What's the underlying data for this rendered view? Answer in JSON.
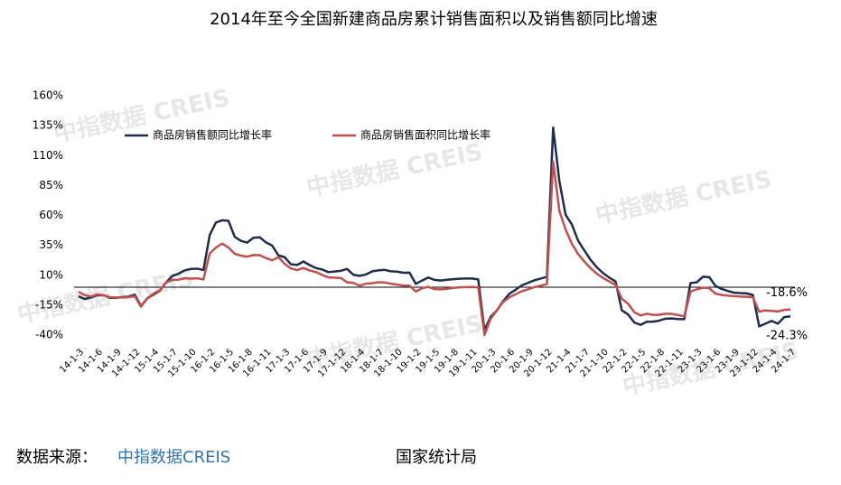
{
  "chart_data": {
    "type": "line",
    "title": "2014年至今全国新建商品房累计销售面积以及销售额同比增速",
    "watermark": "中指数据 CREIS",
    "source": {
      "label": "数据来源：",
      "items": [
        "中指数据CREIS",
        "国家统计局"
      ]
    },
    "legend": "upper left",
    "zero_line": true,
    "ylim": [
      -40,
      160
    ],
    "yticks": [
      {
        "value": -40,
        "label": "-40%"
      },
      {
        "value": -15,
        "label": "-15%"
      },
      {
        "value": 10,
        "label": "10%"
      },
      {
        "value": 35,
        "label": "35%"
      },
      {
        "value": 60,
        "label": "60%"
      },
      {
        "value": 85,
        "label": "85%"
      },
      {
        "value": 110,
        "label": "110%"
      },
      {
        "value": 135,
        "label": "135%"
      },
      {
        "value": 160,
        "label": "160%"
      }
    ],
    "categories": [
      "14-1-3",
      null,
      null,
      "14-1-6",
      null,
      null,
      "14-1-9",
      null,
      null,
      "14-1-12",
      null,
      null,
      "15-1-4",
      null,
      null,
      "15-1-7",
      null,
      null,
      "15-1-10",
      null,
      null,
      "16-1-2",
      null,
      null,
      "16-1-5",
      null,
      null,
      "16-1-8",
      null,
      null,
      "16-1-11",
      null,
      null,
      "17-1-3",
      null,
      null,
      "17-1-6",
      null,
      null,
      "17-1-9",
      null,
      null,
      "17-1-12",
      null,
      null,
      "18-1-4",
      null,
      null,
      "18-1-7",
      null,
      null,
      "18-1-10",
      null,
      null,
      "19-1-2",
      null,
      null,
      "19-1-5",
      null,
      null,
      "19-1-8",
      null,
      null,
      "19-1-11",
      null,
      null,
      "20-1-3",
      null,
      null,
      "20-1-6",
      null,
      null,
      "20-1-9",
      null,
      null,
      "20-1-12",
      null,
      null,
      "21-1-4",
      null,
      null,
      "21-1-7",
      null,
      null,
      "21-1-10",
      null,
      null,
      "22-1-2",
      null,
      null,
      "22-1-5",
      null,
      null,
      "22-1-8",
      null,
      null,
      "22-1-11",
      null,
      null,
      "23-1-3",
      null,
      null,
      "23-1-6",
      null,
      null,
      "23-1-9",
      null,
      null,
      "23-1-12",
      null,
      null,
      "24-1-4",
      null,
      null,
      "24-1-7"
    ],
    "series": [
      {
        "name": "商品房销售额同比增长率",
        "color": "#1f2d4d",
        "values": [
          -7.7,
          -9.9,
          -8.5,
          -6.7,
          -6.6,
          -8.9,
          -8.9,
          -8.3,
          -7.8,
          -6.3,
          -15.8,
          -9.3,
          -6.2,
          -3.0,
          3.9,
          9.4,
          11.3,
          14.1,
          15.3,
          15.5,
          14.4,
          43.6,
          54.1,
          55.9,
          55.5,
          42.1,
          38.7,
          37.3,
          41.3,
          41.7,
          37.5,
          34.8,
          26.6,
          25.1,
          19.2,
          18.6,
          21.5,
          18.5,
          16.0,
          14.8,
          12.6,
          13.1,
          13.7,
          15.3,
          10.4,
          9.5,
          10.6,
          13.2,
          14.1,
          14.5,
          13.3,
          13.0,
          12.1,
          12.2,
          2.8,
          5.6,
          8.1,
          6.1,
          5.6,
          6.2,
          6.7,
          7.1,
          7.3,
          7.3,
          6.5,
          -35.9,
          -24.7,
          -19.3,
          -11.6,
          -5.4,
          -2.1,
          1.6,
          3.7,
          5.8,
          7.2,
          8.7,
          133.4,
          88.5,
          60.5,
          52.4,
          38.9,
          30.7,
          22.9,
          16.6,
          11.8,
          8.0,
          4.8,
          -19.3,
          -22.7,
          -29.5,
          -31.5,
          -28.9,
          -28.8,
          -27.9,
          -26.3,
          -26.1,
          -26.6,
          -26.7,
          3.5,
          4.1,
          8.8,
          8.4,
          1.1,
          -1.5,
          -3.2,
          -4.6,
          -4.9,
          -5.2,
          -6.5,
          -32.7,
          -30.5,
          -28.1,
          -30.5,
          -25.0,
          -24.3
        ],
        "value_labels": [
          null,
          null,
          null,
          null,
          null,
          null,
          null,
          null,
          null,
          null,
          null,
          null,
          null,
          null,
          null,
          null,
          null,
          null,
          null,
          null,
          null,
          null,
          null,
          null,
          null,
          null,
          null,
          null,
          null,
          null,
          null,
          null,
          null,
          null,
          null,
          null,
          null,
          null,
          null,
          null,
          null,
          null,
          null,
          null,
          null,
          null,
          null,
          null,
          null,
          null,
          null,
          null,
          null,
          null,
          null,
          null,
          null,
          null,
          null,
          null,
          null,
          null,
          null,
          null,
          null,
          null,
          null,
          null,
          null,
          null,
          null,
          null,
          null,
          null,
          null,
          null,
          null,
          null,
          null,
          null,
          null,
          null,
          null,
          null,
          null,
          null,
          null,
          null,
          null,
          null,
          null,
          null,
          null,
          null,
          null,
          null,
          null,
          null,
          null,
          null,
          null,
          null,
          null,
          null,
          null,
          null,
          null,
          null,
          null,
          null,
          null,
          null,
          null,
          null,
          "-24.3%"
        ]
      },
      {
        "name": "商品房销售面积同比增长率",
        "color": "#c0504d",
        "values": [
          -3.8,
          -6.7,
          -7.8,
          -6.0,
          -6.7,
          -8.3,
          -8.6,
          -8.6,
          -8.2,
          -7.6,
          -16.3,
          -9.2,
          -5.4,
          -2.6,
          3.9,
          6.1,
          6.2,
          7.5,
          7.2,
          7.4,
          6.5,
          28.2,
          33.1,
          36.5,
          33.2,
          27.9,
          26.4,
          25.5,
          26.9,
          26.8,
          24.3,
          22.5,
          25.1,
          19.5,
          15.7,
          14.3,
          16.1,
          14.0,
          12.7,
          10.3,
          8.2,
          7.9,
          7.7,
          4.1,
          3.6,
          1.3,
          2.9,
          3.3,
          4.2,
          4.0,
          2.9,
          2.2,
          1.4,
          1.3,
          -3.6,
          -0.9,
          0.3,
          -1.6,
          -1.8,
          -1.3,
          -0.6,
          -0.1,
          0.1,
          0.2,
          -0.1,
          -39.9,
          -26.3,
          -19.3,
          -12.3,
          -8.4,
          -5.8,
          -3.3,
          -1.8,
          0,
          1.3,
          2.6,
          104.9,
          63.8,
          48.1,
          36.3,
          27.7,
          21.5,
          15.9,
          11.3,
          7.6,
          4.8,
          1.9,
          -9.6,
          -13.8,
          -20.9,
          -23.6,
          -22.2,
          -23.1,
          -23.0,
          -22.2,
          -22.3,
          -23.3,
          -24.3,
          -3.6,
          -1.8,
          -0.4,
          -0.9,
          -5.3,
          -6.5,
          -7.1,
          -7.5,
          -7.8,
          -8.0,
          -8.5,
          -20.5,
          -19.4,
          -19.8,
          -20.3,
          -19.0,
          -18.6
        ],
        "value_labels": [
          null,
          null,
          null,
          null,
          null,
          null,
          null,
          null,
          null,
          null,
          null,
          null,
          null,
          null,
          null,
          null,
          null,
          null,
          null,
          null,
          null,
          null,
          null,
          null,
          null,
          null,
          null,
          null,
          null,
          null,
          null,
          null,
          null,
          null,
          null,
          null,
          null,
          null,
          null,
          null,
          null,
          null,
          null,
          null,
          null,
          null,
          null,
          null,
          null,
          null,
          null,
          null,
          null,
          null,
          null,
          null,
          null,
          null,
          null,
          null,
          null,
          null,
          null,
          null,
          null,
          null,
          null,
          null,
          null,
          null,
          null,
          null,
          null,
          null,
          null,
          null,
          null,
          null,
          null,
          null,
          null,
          null,
          null,
          null,
          null,
          null,
          null,
          null,
          null,
          null,
          null,
          null,
          null,
          null,
          null,
          null,
          null,
          null,
          null,
          null,
          null,
          null,
          null,
          null,
          null,
          null,
          null,
          null,
          null,
          null,
          null,
          null,
          null,
          null,
          "-18.6%"
        ]
      }
    ]
  }
}
